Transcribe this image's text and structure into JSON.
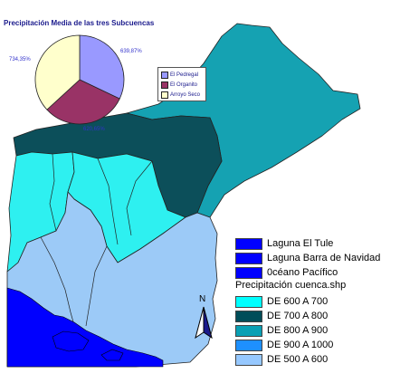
{
  "chart": {
    "title": "Precipitación Media de las tres Subcuencas",
    "slices": [
      {
        "label": "El Pedregal",
        "value_label": "639,87%",
        "value": 639.87,
        "color": "#9999ff"
      },
      {
        "label": "El Organito",
        "value_label": "620,65%",
        "value": 620.65,
        "color": "#993366"
      },
      {
        "label": "Arroyo Seco",
        "value_label": "734,35%",
        "value": 734.35,
        "color": "#ffffcc"
      }
    ]
  },
  "chart_data": {
    "type": "pie",
    "title": "Precipitación Media de las tres Subcuencas",
    "categories": [
      "El Pedregal",
      "El Organito",
      "Arroyo Seco"
    ],
    "values": [
      639.87,
      620.65,
      734.35
    ],
    "value_labels": [
      "639,87%",
      "620,65%",
      "734,35%"
    ],
    "legend": "right"
  },
  "legend": {
    "layers": [
      {
        "label": "Laguna El Tule",
        "color": "#0000ff"
      },
      {
        "label": "Laguna Barra de Navidad",
        "color": "#0000ff"
      },
      {
        "label": "0céano Pacífico",
        "color": "#0000ff"
      }
    ],
    "shapefile_title": "Precipitación cuenca.shp",
    "classes": [
      {
        "label": "DE 600 A 700",
        "color": "#00ffff"
      },
      {
        "label": "DE 700 A 800",
        "color": "#004d59"
      },
      {
        "label": "DE 800 A 900",
        "color": "#0aa0b4"
      },
      {
        "label": "DE 900 A 1000",
        "color": "#1e90ff"
      },
      {
        "label": "DE 500 A 600",
        "color": "#96c8ff"
      }
    ]
  },
  "north_arrow": {
    "letter": "N"
  },
  "map_colors": {
    "land_cyan": "#2ef0f0",
    "land_dark": "#0c4f5a",
    "land_teal": "#15a2b2",
    "land_light": "#9ccaf7",
    "water": "#0000ff"
  }
}
